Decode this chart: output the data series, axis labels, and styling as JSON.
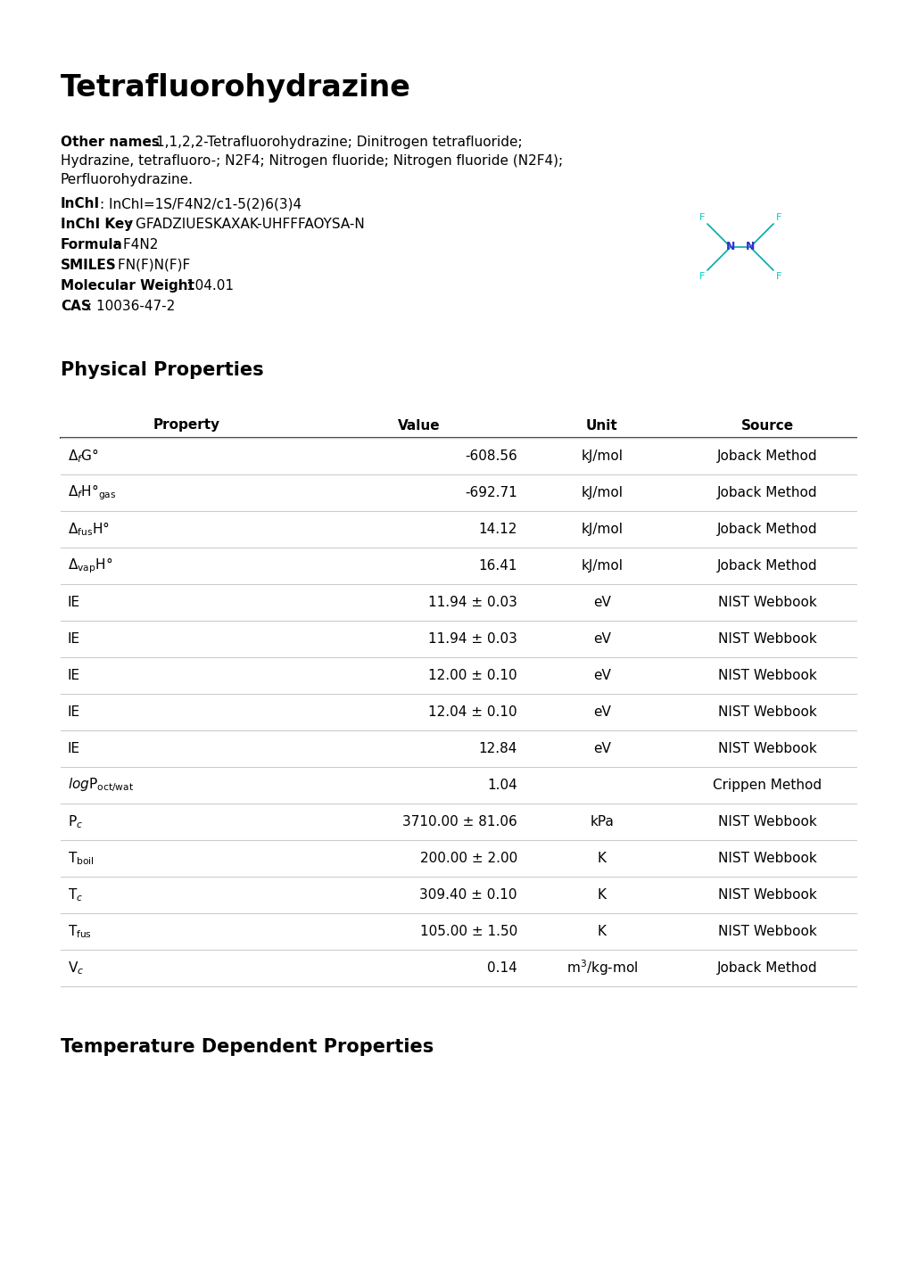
{
  "title": "Tetrafluorohydrazine",
  "other_names_label": "Other names",
  "other_names_line1": "1,1,2,2-Tetrafluorohydrazine; Dinitrogen tetrafluoride;",
  "other_names_line2": "Hydrazine, tetrafluoro-; N2F4; Nitrogen fluoride; Nitrogen fluoride (N2F4);",
  "other_names_line3": "Perfluorohydrazine.",
  "inchi_label": "InChI",
  "inchi_value": "InChI=1S/F4N2/c1-5(2)6(3)4",
  "inchikey_label": "InChI Key",
  "inchikey_value": "GFADZIUESKAXAK-UHFFFAOYSA-N",
  "formula_label": "Formula",
  "formula_value": "F4N2",
  "smiles_label": "SMILES",
  "smiles_value": "FN(F)N(F)F",
  "mw_label": "Molecular Weight",
  "mw_value": "104.01",
  "cas_label": "CAS",
  "cas_value": "10036-47-2",
  "section1_title": "Physical Properties",
  "table_headers": [
    "Property",
    "Value",
    "Unit",
    "Source"
  ],
  "section2_title": "Temperature Dependent Properties",
  "bg": "#ffffff",
  "fg": "#000000",
  "mol_N": "#3333cc",
  "mol_F": "#00cccc",
  "mol_bond": "#00aaaa",
  "tbl_heavy": "#444444",
  "tbl_light": "#cccccc"
}
